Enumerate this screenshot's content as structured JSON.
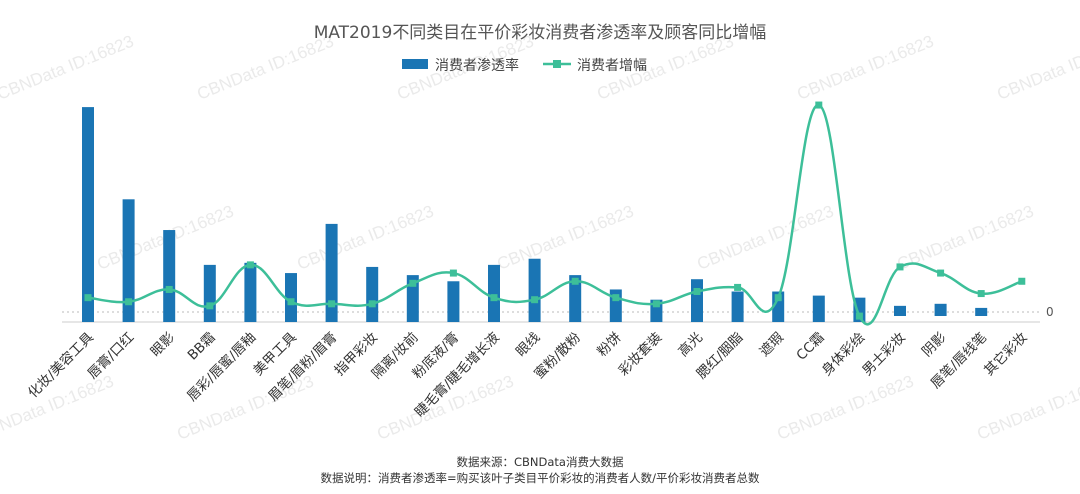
{
  "chart_data": {
    "type": "bar",
    "title": "MAT2019不同类目在平价彩妆消费者渗透率及顾客同比增幅",
    "categories": [
      "化妆/美容工具",
      "唇膏/口红",
      "眼影",
      "BB霜",
      "唇彩/唇蜜/唇釉",
      "美甲工具",
      "眉笔/眉粉/眉膏",
      "指甲彩妆",
      "隔离/妆前",
      "粉底液/膏",
      "睫毛膏/睫毛增长液",
      "眼线",
      "蜜粉/散粉",
      "粉饼",
      "彩妆套装",
      "高光",
      "腮红/胭脂",
      "遮瑕",
      "CC霜",
      "身体彩绘",
      "男士彩妆",
      "阴影",
      "唇笔/唇线笔",
      "其它彩妆"
    ],
    "series": [
      {
        "name": "消费者渗透率",
        "type": "bar",
        "color": "#1a75b4",
        "values": [
          100,
          55,
          40,
          23,
          24,
          19,
          43,
          22,
          18,
          15,
          23,
          26,
          18,
          11,
          6,
          16,
          10,
          10,
          8,
          7,
          3,
          4,
          2,
          0
        ]
      },
      {
        "name": "消费者增幅",
        "type": "line",
        "color": "#3dbf99",
        "values": [
          7,
          5,
          11,
          3,
          23,
          5,
          4,
          4,
          14,
          19,
          7,
          6,
          15,
          7,
          4,
          10,
          12,
          7,
          101,
          -2,
          22,
          19,
          9,
          15
        ]
      }
    ],
    "yticks": [
      "0"
    ],
    "ylim": [
      -10,
      102
    ],
    "legend": "top-center",
    "grid": false,
    "source": "数据来源：CBNData消费大数据",
    "note": "数据说明：消费者渗透率=购买该叶子类目平价彩妆的消费者人数/平价彩妆消费者总数",
    "watermark": "CBNData ID:16823"
  }
}
